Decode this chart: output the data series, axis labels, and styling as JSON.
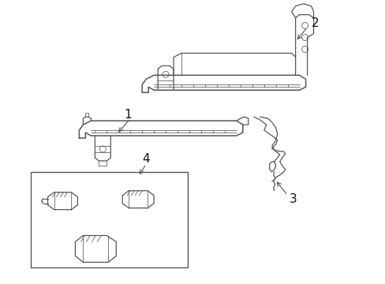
{
  "bg_color": "#ffffff",
  "line_color": "#555555",
  "label_color": "#111111",
  "fig_width": 4.89,
  "fig_height": 3.6,
  "dpi": 100,
  "lw_main": 0.9,
  "lw_thin": 0.55,
  "lw_thick": 1.1
}
